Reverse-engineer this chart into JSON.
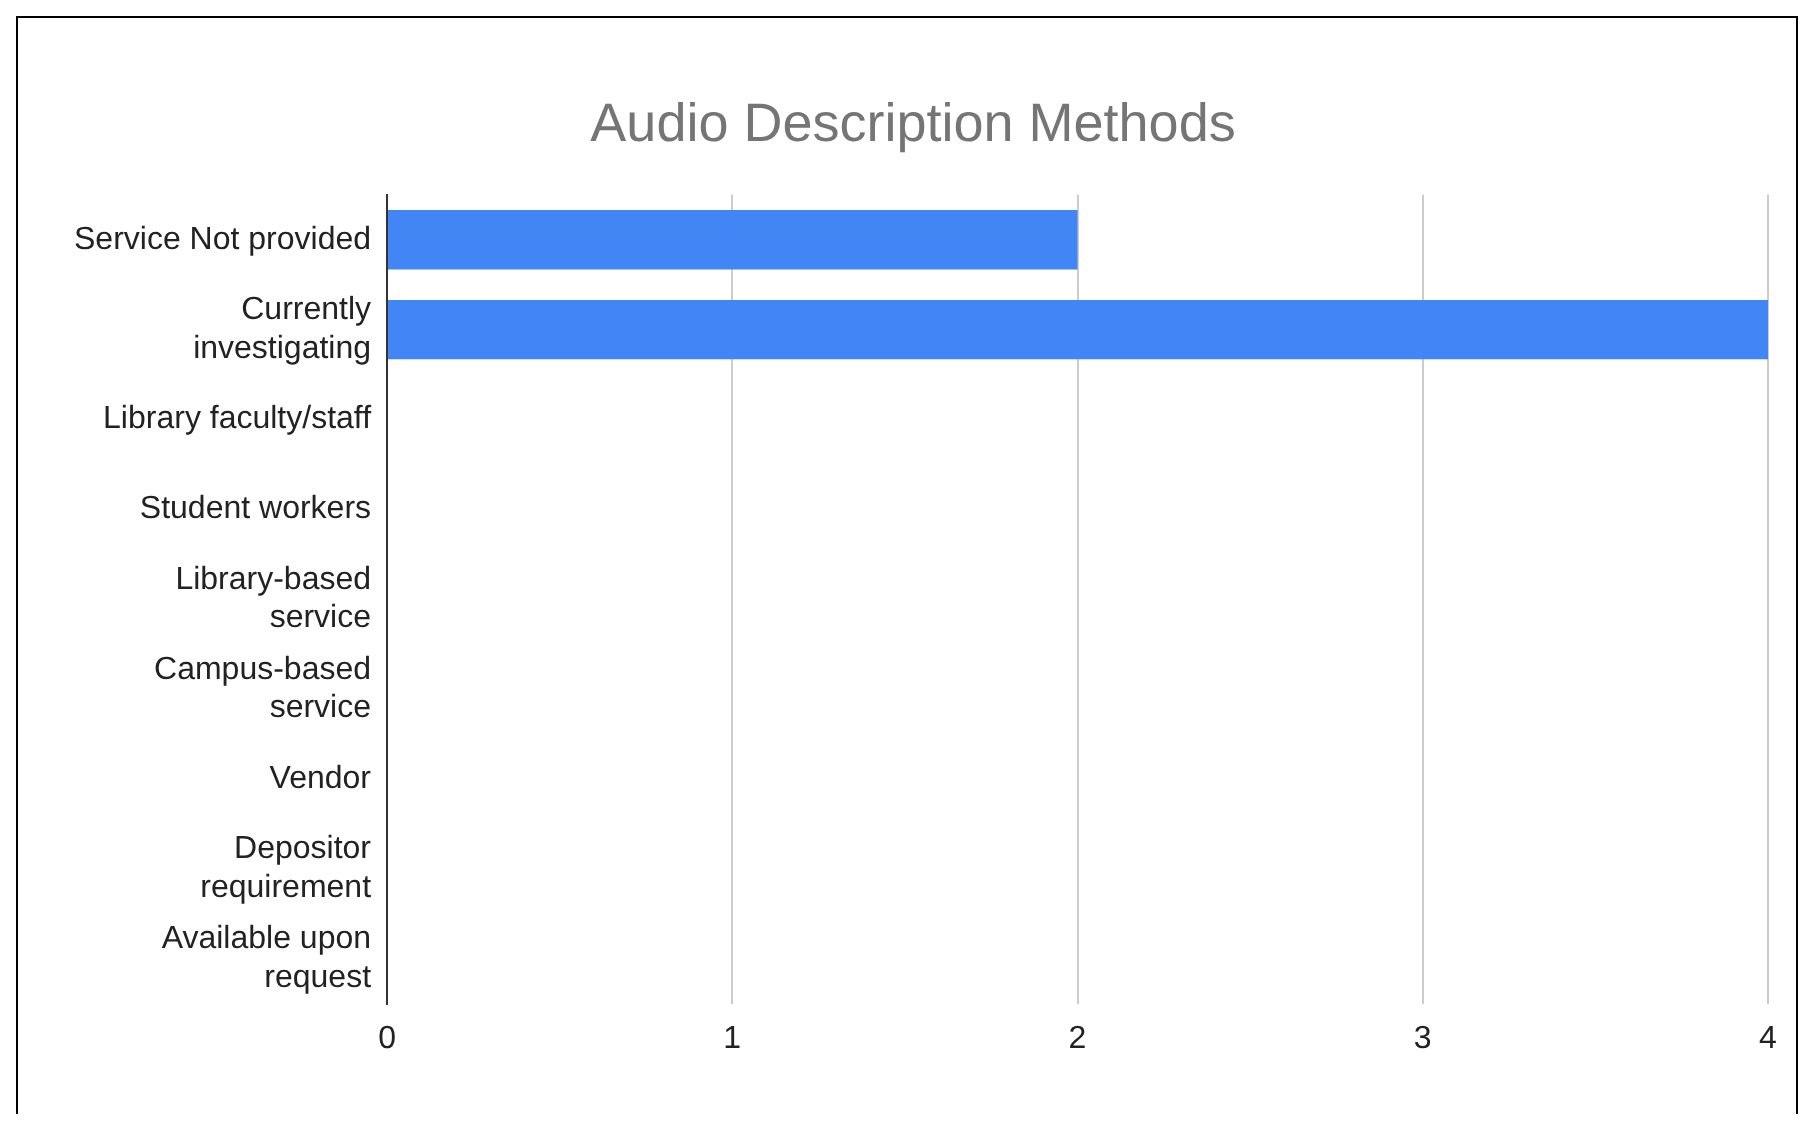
{
  "chart_data": {
    "type": "bar",
    "orientation": "horizontal",
    "title": "Audio Description Methods",
    "categories": [
      "Service Not provided",
      "Currently\ninvestigating",
      "Library faculty/staff",
      "Student workers",
      "Library-based\nservice",
      "Campus-based\nservice",
      "Vendor",
      "Depositor\nrequirement",
      "Available upon\nrequest"
    ],
    "values": [
      2,
      4,
      0,
      0,
      0,
      0,
      0,
      0,
      0
    ],
    "color": "#4285f4",
    "xlim": [
      0,
      4
    ],
    "xticks": [
      0,
      1,
      2,
      3,
      4
    ],
    "grid": "x",
    "legend": false
  }
}
